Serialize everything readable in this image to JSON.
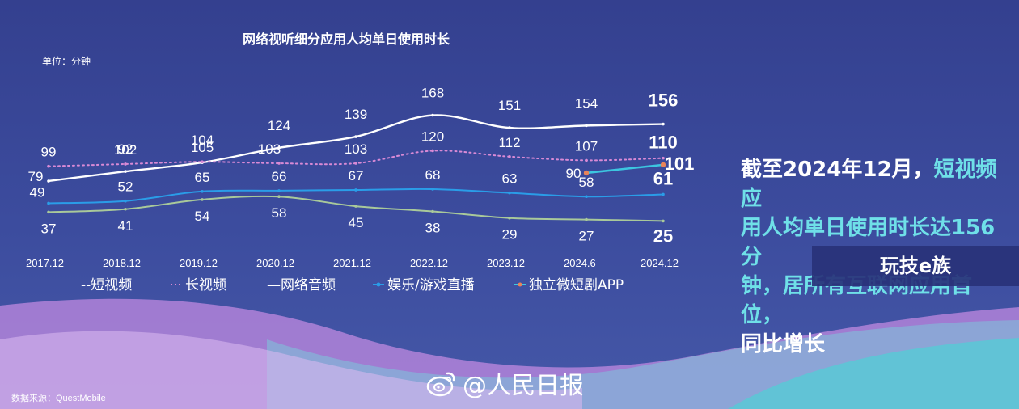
{
  "chart_data": {
    "type": "line",
    "title": "网络视听细分应用人均单日使用时长",
    "unit": "单位：分钟",
    "categories": [
      "2017.12",
      "2018.12",
      "2019.12",
      "2020.12",
      "2021.12",
      "2022.12",
      "2023.12",
      "2024.6",
      "2024.12"
    ],
    "series": [
      {
        "name": "--短视频",
        "color": "#ffffff",
        "style": "solid",
        "values": [
          79,
          92,
          104,
          124,
          139,
          168,
          151,
          154,
          156
        ],
        "labels": [
          "79",
          "92",
          "104",
          "124",
          "139",
          "168",
          "151",
          "154",
          "156"
        ]
      },
      {
        "name": "长视频",
        "color": "#d98ad6",
        "style": "dotted",
        "values": [
          99,
          102,
          105,
          103,
          103,
          120,
          112,
          107,
          110
        ],
        "labels": [
          "99",
          "102",
          "105",
          "103",
          "103",
          "120",
          "112",
          "107",
          "110"
        ]
      },
      {
        "name": "—网络音频",
        "color": "#a9c99a",
        "style": "solid",
        "values": [
          37,
          41,
          54,
          58,
          45,
          38,
          29,
          27,
          25
        ],
        "labels": [
          "37",
          "41",
          "54",
          "58",
          "45",
          "38",
          "29",
          "27",
          "25"
        ]
      },
      {
        "name": "娱乐/游戏直播",
        "color": "#2a9de8",
        "style": "solid",
        "values": [
          49,
          52,
          65,
          66,
          67,
          68,
          63,
          58,
          61
        ],
        "labels": [
          "49",
          "52",
          "65",
          "66",
          "67",
          "68",
          "63",
          "58",
          "61"
        ]
      },
      {
        "name": "独立微短剧APP",
        "color": "#3cc6e0",
        "style": "solid",
        "values": [
          null,
          null,
          null,
          null,
          null,
          null,
          null,
          90,
          101
        ],
        "labels": [
          "",
          "",
          "",
          "",
          "",
          "",
          "",
          "90",
          "101"
        ]
      }
    ],
    "legend_position": "bottom"
  },
  "side_text": {
    "line1_a": "截至2024年12月，",
    "line1_b": "短视频应",
    "line2": "用人均单日使用时长达156分",
    "line3": "钟，居所有互联网应用首位，",
    "line4": "同比增长"
  },
  "watermark": "玩技e族",
  "source": "数据来源：QuestMobile",
  "weibo": "@人民日报"
}
